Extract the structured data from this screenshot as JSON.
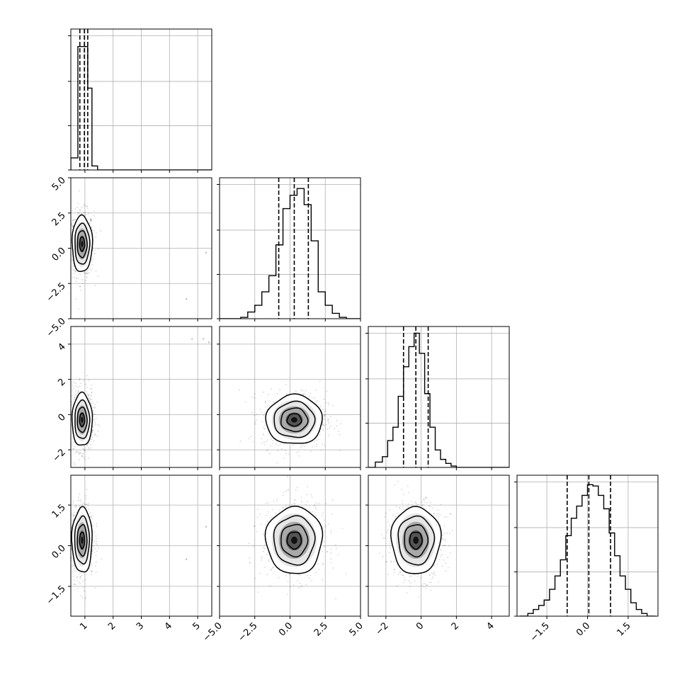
{
  "chart_data": {
    "type": "corner",
    "title": "",
    "parameters": 4,
    "grid": true,
    "colors": {
      "line": "#000000",
      "grid": "#b0b0b0",
      "density": "#000000"
    },
    "diagonal": [
      {
        "param": 0,
        "xlim": [
          0.5,
          5.5
        ],
        "xticks": [
          "1",
          "2",
          "3",
          "4",
          "5"
        ],
        "xtick_values": [
          1,
          2,
          3,
          4,
          5
        ],
        "quantiles": [
          0.82,
          0.98,
          1.1
        ],
        "bins": [
          0.5,
          0.75,
          0.95,
          1.1,
          1.25,
          1.45,
          5.5
        ],
        "counts": [
          0.09,
          0.92,
          0.92,
          0.61,
          0.03,
          0.0
        ],
        "ymax": 1.0
      },
      {
        "param": 1,
        "xlim": [
          -5.0,
          5.0
        ],
        "xticks": [
          "−5.0",
          "−2.5",
          "0.0",
          "2.5",
          "5.0"
        ],
        "xtick_values": [
          -5.0,
          -2.5,
          0.0,
          2.5,
          5.0
        ],
        "quantiles": [
          -0.8,
          0.3,
          1.3
        ],
        "bins": [
          -5.0,
          -3.5,
          -3.0,
          -2.5,
          -2.0,
          -1.5,
          -1.0,
          -0.5,
          0.0,
          0.5,
          1.0,
          1.5,
          2.0,
          2.5,
          3.0,
          3.5,
          4.0,
          5.0
        ],
        "counts": [
          0.0,
          0.01,
          0.05,
          0.1,
          0.2,
          0.32,
          0.55,
          0.82,
          0.92,
          0.97,
          0.85,
          0.58,
          0.2,
          0.1,
          0.04,
          0.01,
          0.0
        ],
        "ymax": 1.0
      },
      {
        "param": 2,
        "xlim": [
          -3.0,
          5.0
        ],
        "xticks": [
          "−2",
          "0",
          "2",
          "4"
        ],
        "xtick_values": [
          -2,
          0,
          2,
          4
        ],
        "quantiles": [
          -1.0,
          -0.3,
          0.4
        ],
        "bins": [
          -3.0,
          -2.6,
          -2.2,
          -1.9,
          -1.6,
          -1.3,
          -1.0,
          -0.7,
          -0.4,
          -0.1,
          0.2,
          0.5,
          0.8,
          1.1,
          1.4,
          1.7,
          2.0,
          2.5,
          5.0
        ],
        "counts": [
          0.0,
          0.04,
          0.08,
          0.2,
          0.3,
          0.53,
          0.75,
          0.9,
          1.0,
          0.85,
          0.55,
          0.3,
          0.13,
          0.06,
          0.03,
          0.01,
          0.0,
          0.0
        ],
        "ymax": 1.0
      },
      {
        "param": 3,
        "xlim": [
          -2.6,
          2.6
        ],
        "xticks": [
          "−1.5",
          "0.0",
          "1.5"
        ],
        "xtick_values": [
          -1.5,
          0.0,
          1.5
        ],
        "quantiles": [
          -0.75,
          0.05,
          0.85
        ],
        "bins": [
          -2.5,
          -2.2,
          -2.0,
          -1.8,
          -1.6,
          -1.4,
          -1.2,
          -1.0,
          -0.8,
          -0.6,
          -0.4,
          -0.2,
          0.0,
          0.2,
          0.4,
          0.6,
          0.8,
          1.0,
          1.2,
          1.4,
          1.6,
          1.8,
          2.0,
          2.2,
          2.5
        ],
        "counts": [
          0.0,
          0.02,
          0.05,
          0.08,
          0.12,
          0.2,
          0.3,
          0.42,
          0.6,
          0.73,
          0.82,
          0.9,
          0.98,
          0.97,
          0.9,
          0.8,
          0.62,
          0.45,
          0.3,
          0.2,
          0.1,
          0.05,
          0.02,
          0.0
        ],
        "ymax": 1.0
      }
    ],
    "left_labels": [
      null,
      {
        "ylim": [
          -5.0,
          5.0
        ],
        "yticks": [
          "5.0",
          "2.5",
          "0.0",
          "−2.5",
          "−5.0"
        ],
        "ytick_values": [
          5.0,
          2.5,
          0.0,
          -2.5,
          -5.0
        ]
      },
      {
        "ylim": [
          -3.0,
          5.0
        ],
        "yticks": [
          "4",
          "2",
          "0",
          "−2"
        ],
        "ytick_values": [
          4,
          2,
          0,
          -2
        ]
      },
      {
        "ylim": [
          -2.6,
          2.6
        ],
        "yticks": [
          "1.5",
          "0.0",
          "−1.5"
        ],
        "ytick_values": [
          1.5,
          0.0,
          -1.5
        ]
      }
    ],
    "pairs": [
      {
        "row": 1,
        "col": 0,
        "center": [
          0.9,
          0.3
        ],
        "sigma": [
          0.18,
          1.0
        ],
        "rho": 0.0,
        "outliers": [
          [
            4.6,
            -3.6
          ],
          [
            5.3,
            -0.3
          ]
        ]
      },
      {
        "row": 2,
        "col": 0,
        "center": [
          0.9,
          -0.3
        ],
        "sigma": [
          0.18,
          0.75
        ],
        "rho": 0.0,
        "outliers": [
          [
            4.8,
            4.3
          ],
          [
            5.2,
            4.3
          ],
          [
            5.4,
            4.1
          ]
        ]
      },
      {
        "row": 2,
        "col": 1,
        "center": [
          0.3,
          -0.3
        ],
        "sigma": [
          1.0,
          0.7
        ],
        "rho": 0.0,
        "outliers": []
      },
      {
        "row": 3,
        "col": 0,
        "center": [
          0.9,
          0.2
        ],
        "sigma": [
          0.18,
          0.6
        ],
        "rho": 0.0,
        "outliers": [
          [
            4.6,
            -0.5
          ],
          [
            5.3,
            0.7
          ]
        ]
      },
      {
        "row": 3,
        "col": 1,
        "center": [
          0.3,
          0.2
        ],
        "sigma": [
          1.0,
          0.62
        ],
        "rho": 0.0,
        "outliers": []
      },
      {
        "row": 3,
        "col": 2,
        "center": [
          -0.3,
          0.2
        ],
        "sigma": [
          0.7,
          0.62
        ],
        "rho": 0.0,
        "outliers": []
      }
    ]
  }
}
